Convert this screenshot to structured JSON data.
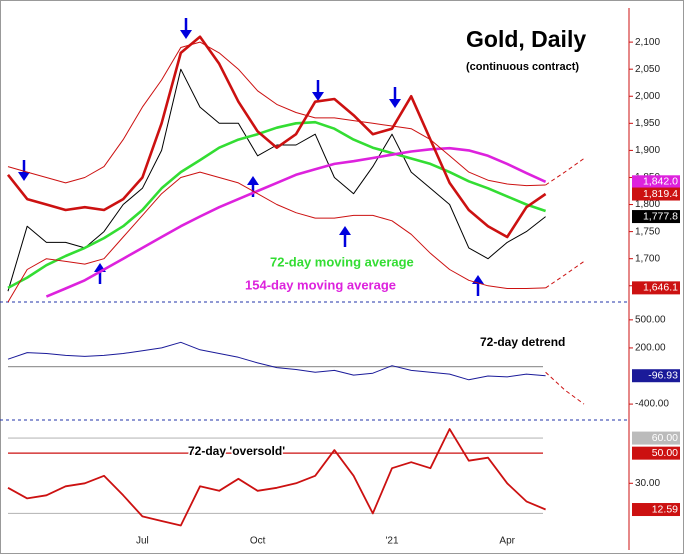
{
  "chart_data": [
    {
      "type": "line",
      "title": "Gold, Daily",
      "subtitle": "(continuous contract)",
      "categories": [
        null,
        null,
        null,
        null,
        null,
        null,
        null,
        "Jul",
        null,
        null,
        null,
        null,
        null,
        "Oct",
        null,
        null,
        null,
        null,
        null,
        null,
        "'21",
        null,
        null,
        null,
        null,
        null,
        "Apr",
        null,
        null,
        null,
        null
      ],
      "ylim": [
        1620,
        2163
      ],
      "yticks": [
        {
          "value": 1650,
          "label": "1,650"
        },
        {
          "value": 1700,
          "label": "1,700"
        },
        {
          "value": 1750,
          "label": "1,750"
        },
        {
          "value": 1800,
          "label": "1,800"
        },
        {
          "value": 1850,
          "label": "1,850"
        },
        {
          "value": 1900,
          "label": "1,900"
        },
        {
          "value": 1950,
          "label": "1,950"
        },
        {
          "value": 2000,
          "label": "2,000"
        },
        {
          "value": 2050,
          "label": "2,050"
        },
        {
          "value": 2100,
          "label": "2,100"
        }
      ],
      "series": [
        {
          "color": "#000000",
          "line_style": "thin",
          "end_label": "1,777.8",
          "values": [
            1640,
            1760,
            1730,
            1730,
            1720,
            1750,
            1800,
            1830,
            1900,
            2050,
            1980,
            1950,
            1950,
            1890,
            1910,
            1910,
            1930,
            1850,
            1820,
            1870,
            1930,
            1860,
            1830,
            1800,
            1720,
            1700,
            1730,
            1750,
            1777.8,
            null,
            null
          ]
        },
        {
          "name": "72-day moving average",
          "color": "#33dd33",
          "line_style": "thick",
          "values": [
            1646,
            1665,
            1688,
            1705,
            1720,
            1738,
            1760,
            1790,
            1830,
            1860,
            1882,
            1905,
            1920,
            1930,
            1942,
            1950,
            1952,
            1940,
            1920,
            1905,
            1895,
            1885,
            1875,
            1860,
            1843,
            1830,
            1815,
            1800,
            1788,
            null,
            null
          ]
        },
        {
          "name": "154-day moving average",
          "color": "#dd22dd",
          "line_style": "thick",
          "end_label": "1,842.0",
          "values": [
            null,
            null,
            1630,
            1645,
            1660,
            1680,
            1700,
            1720,
            1740,
            1760,
            1778,
            1795,
            1810,
            1825,
            1840,
            1855,
            1865,
            1875,
            1880,
            1886,
            1892,
            1898,
            1902,
            1904,
            1900,
            1890,
            1875,
            1858,
            1842.0,
            null,
            null
          ]
        },
        {
          "color": "#cc1111",
          "line_style": "thick",
          "end_label": "1,819.4",
          "values": [
            1855,
            1810,
            1800,
            1790,
            1795,
            1790,
            1810,
            1850,
            1950,
            2080,
            2110,
            2060,
            1990,
            1935,
            1905,
            1930,
            1990,
            1995,
            1965,
            1930,
            1940,
            2000,
            1920,
            1840,
            1790,
            1760,
            1740,
            1795,
            1819.4,
            null,
            null
          ]
        },
        {
          "color": "#cc1111",
          "line_style": "thin",
          "values": [
            1870,
            1860,
            1850,
            1840,
            1850,
            1870,
            1920,
            1980,
            2030,
            2090,
            2100,
            2080,
            2050,
            2010,
            1985,
            1970,
            1960,
            1960,
            1955,
            1950,
            1945,
            1940,
            1920,
            1890,
            1860,
            1845,
            1838,
            1835,
            1836,
            null,
            null
          ]
        },
        {
          "color": "#cc1111",
          "line_style": "thin",
          "end_label": "1,646.1",
          "values": [
            1620,
            1680,
            1700,
            1695,
            1690,
            1700,
            1740,
            1780,
            1820,
            1850,
            1860,
            1850,
            1840,
            1820,
            1800,
            1785,
            1775,
            1775,
            1780,
            1780,
            1770,
            1745,
            1710,
            1680,
            1660,
            1650,
            1645,
            1645,
            1646.1,
            null,
            null
          ]
        },
        {
          "color": "#cc1111",
          "line_style": "dashed",
          "values": [
            null,
            null,
            null,
            null,
            null,
            null,
            null,
            null,
            null,
            null,
            null,
            null,
            null,
            null,
            null,
            null,
            null,
            null,
            null,
            null,
            null,
            null,
            null,
            null,
            null,
            null,
            null,
            null,
            1836,
            1860,
            1885
          ]
        },
        {
          "color": "#cc1111",
          "line_style": "dashed",
          "values": [
            null,
            null,
            null,
            null,
            null,
            null,
            null,
            null,
            null,
            null,
            null,
            null,
            null,
            null,
            null,
            null,
            null,
            null,
            null,
            null,
            null,
            null,
            null,
            null,
            null,
            null,
            null,
            null,
            1646.1,
            1670,
            1695
          ]
        }
      ]
    },
    {
      "type": "line",
      "title": "72-day detrend",
      "ylim": [
        -570,
        680
      ],
      "yticks": [
        {
          "value": 500,
          "label": "500.00"
        },
        {
          "value": 200,
          "label": "200.00"
        },
        {
          "value": -400,
          "label": "-400.00"
        }
      ],
      "hlines": [
        {
          "value": 0,
          "color": "#999999"
        }
      ],
      "series": [
        {
          "color": "#1a1a99",
          "line_style": "thin",
          "end_label": "-96.93",
          "values": [
            80,
            150,
            140,
            120,
            110,
            120,
            140,
            170,
            200,
            260,
            180,
            140,
            100,
            40,
            -10,
            -30,
            -60,
            -40,
            -90,
            -70,
            10,
            -40,
            -60,
            -80,
            -140,
            -100,
            -110,
            -80,
            -96.93,
            null,
            null
          ]
        },
        {
          "color": "#cc1111",
          "line_style": "dashed",
          "values": [
            null,
            null,
            null,
            null,
            null,
            null,
            null,
            null,
            null,
            null,
            null,
            null,
            null,
            null,
            null,
            null,
            null,
            null,
            null,
            null,
            null,
            null,
            null,
            null,
            null,
            null,
            null,
            null,
            -60,
            -250,
            -400
          ]
        }
      ]
    },
    {
      "type": "line",
      "title": "72-day 'oversold'",
      "ylim": [
        -1,
        72
      ],
      "yticks": [
        {
          "value": 30,
          "label": "30.00"
        }
      ],
      "hlines": [
        {
          "value": 60,
          "label": "60.00",
          "color": "#bbbbbb"
        },
        {
          "value": 50,
          "label": "50.00",
          "color": "#cc1111"
        },
        {
          "value": 10,
          "color": "#bbbbbb"
        }
      ],
      "series": [
        {
          "color": "#cc1111",
          "line_style": "medium",
          "end_label": "12.59",
          "values": [
            27,
            20,
            22,
            28,
            30,
            35,
            22,
            8,
            5,
            2,
            28,
            25,
            33,
            25,
            27,
            30,
            35,
            52,
            35,
            10,
            40,
            44,
            40,
            66,
            45,
            47,
            30,
            18,
            12.59,
            null,
            null
          ]
        }
      ]
    }
  ]
}
